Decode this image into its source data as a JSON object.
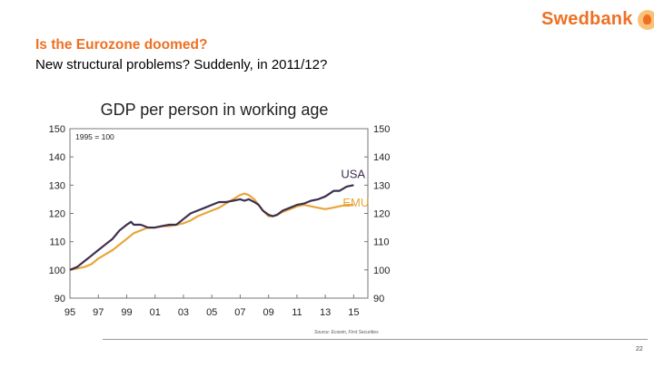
{
  "brand": {
    "name": "Swedbank",
    "logo_icon": "swedbank-oak-tree-logo",
    "accent": "#ee7023"
  },
  "slide": {
    "title": "Is the Eurozone doomed?",
    "subtitle": "New structural problems? Suddenly, in 2011/12?",
    "source": "Source: Ecowin, First Securities",
    "page_number": "22"
  },
  "chart_data": {
    "type": "line",
    "title": "GDP per person in working age",
    "index_note": "1995 = 100",
    "ylim": [
      90,
      150
    ],
    "yticks": [
      90,
      100,
      110,
      120,
      130,
      140,
      150
    ],
    "xlim": [
      1995,
      2016
    ],
    "xticks": [
      1995,
      1997,
      1999,
      2001,
      2003,
      2005,
      2007,
      2009,
      2011,
      2013,
      2015
    ],
    "xtick_labels": [
      "95",
      "97",
      "99",
      "01",
      "03",
      "05",
      "07",
      "09",
      "11",
      "13",
      "15"
    ],
    "grid": false,
    "series": [
      {
        "name": "USA",
        "color": "#3d2f4e",
        "x": [
          1995,
          1995.5,
          1996,
          1996.5,
          1997,
          1997.5,
          1998,
          1998.5,
          1999,
          1999.3,
          1999.5,
          2000,
          2000.5,
          2001,
          2001.5,
          2002,
          2002.5,
          2003,
          2003.5,
          2004,
          2004.5,
          2005,
          2005.5,
          2006,
          2006.5,
          2007,
          2007.3,
          2007.6,
          2008,
          2008.3,
          2008.6,
          2009,
          2009.3,
          2009.6,
          2010,
          2010.5,
          2011,
          2011.5,
          2012,
          2012.5,
          2013,
          2013.3,
          2013.6,
          2014,
          2014.5,
          2015
        ],
        "y": [
          100,
          101,
          103,
          105,
          107,
          109,
          111,
          114,
          116,
          117,
          116,
          116,
          115,
          115,
          115.5,
          116,
          116,
          118,
          120,
          121,
          122,
          123,
          124,
          124,
          124.5,
          125,
          124.5,
          125,
          124,
          123,
          121,
          119.5,
          119,
          119.5,
          121,
          122,
          123,
          123.5,
          124.5,
          125,
          126,
          127,
          128,
          128,
          129.5,
          130
        ]
      },
      {
        "name": "EMU",
        "color": "#e9a53a",
        "x": [
          1995,
          1995.5,
          1996,
          1996.5,
          1997,
          1997.5,
          1998,
          1998.5,
          1999,
          1999.5,
          2000,
          2000.5,
          2001,
          2001.5,
          2002,
          2002.5,
          2003,
          2003.5,
          2004,
          2004.5,
          2005,
          2005.5,
          2006,
          2006.5,
          2007,
          2007.3,
          2007.6,
          2008,
          2008.3,
          2008.6,
          2009,
          2009.3,
          2009.6,
          2010,
          2010.5,
          2011,
          2011.5,
          2012,
          2012.5,
          2013,
          2013.5,
          2014,
          2014.5,
          2015
        ],
        "y": [
          100,
          100.5,
          101,
          102,
          104,
          105.5,
          107,
          109,
          111,
          113,
          114,
          115,
          115,
          115.5,
          115.5,
          116,
          116.5,
          117.5,
          119,
          120,
          121,
          122,
          123.5,
          125,
          126.5,
          127,
          126.5,
          125,
          123,
          121,
          119,
          119,
          119.5,
          120.5,
          121.5,
          122.5,
          123,
          122.5,
          122,
          121.5,
          122,
          122.5,
          123,
          123
        ]
      }
    ]
  }
}
